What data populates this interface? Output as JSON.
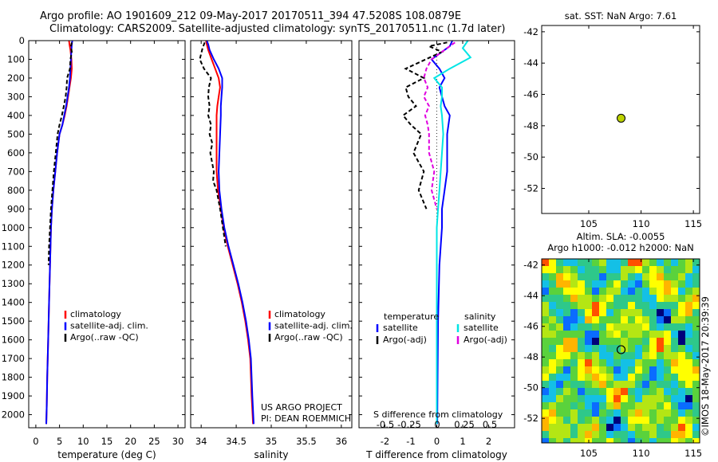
{
  "title_line1": "Argo profile: AO 1901609_212 09-May-2017 20170511_394 47.5208S 108.0879E",
  "title_line2": "Climatology: CARS2009. Satellite-adjusted climatology: synTS_20170511.nc (1.7d later)",
  "side_label": "©IMOS 18-May-2017 20:39:39",
  "colors": {
    "climatology": "#ff0000",
    "satellite": "#0000ff",
    "argo": "#000000",
    "sal_satellite": "#00e5e5",
    "sal_argo": "#e000e0"
  },
  "depth_ticks": [
    "0",
    "100",
    "200",
    "300",
    "400",
    "500",
    "600",
    "700",
    "800",
    "900",
    "1000",
    "1100",
    "1200",
    "1300",
    "1400",
    "1500",
    "1600",
    "1700",
    "1800",
    "1900",
    "2000"
  ],
  "chart_data": [
    {
      "type": "line",
      "xlabel": "temperature (deg C)",
      "ylabel": "",
      "xlim": [
        -1.5,
        31.5
      ],
      "ylim": [
        2070,
        0
      ],
      "xticks": [
        "0",
        "5",
        "10",
        "15",
        "20",
        "25",
        "30"
      ],
      "legend": [
        "climatology",
        "satellite-adj. clim.",
        "Argo(..raw -QC)"
      ],
      "series": [
        {
          "name": "climatology",
          "color": "climatology",
          "dash": "",
          "x": [
            7.0,
            7.1,
            7.3,
            7.5,
            7.6,
            7.4,
            7.1,
            6.8,
            6.5,
            6.1,
            5.6,
            5.0,
            4.5,
            4.1,
            3.7,
            3.4,
            3.2,
            3.0,
            2.8,
            2.6,
            2.4,
            2.3,
            2.2
          ],
          "y": [
            0,
            20,
            50,
            100,
            150,
            200,
            250,
            300,
            350,
            400,
            450,
            500,
            600,
            700,
            800,
            900,
            1000,
            1200,
            1400,
            1600,
            1800,
            1950,
            2050
          ]
        },
        {
          "name": "satellite-adj. clim.",
          "color": "satellite",
          "dash": "",
          "x": [
            7.7,
            7.6,
            7.5,
            7.4,
            7.3,
            7.2,
            7.0,
            6.7,
            6.4,
            6.0,
            5.6,
            5.0,
            4.5,
            4.1,
            3.7,
            3.4,
            3.2,
            3.0,
            2.8,
            2.6,
            2.4,
            2.3,
            2.2
          ],
          "y": [
            0,
            20,
            50,
            100,
            150,
            200,
            250,
            300,
            350,
            400,
            450,
            500,
            600,
            700,
            800,
            900,
            1000,
            1200,
            1400,
            1600,
            1800,
            1950,
            2050
          ]
        },
        {
          "name": "Argo(..raw -QC)",
          "color": "argo",
          "dash": "5,3",
          "x": [
            7.6,
            7.4,
            7.6,
            7.3,
            7.2,
            6.6,
            6.5,
            6.3,
            5.9,
            5.5,
            5.0,
            4.6,
            4.2,
            3.8,
            3.5,
            3.2,
            3.0,
            2.8,
            2.7
          ],
          "y": [
            10,
            30,
            60,
            100,
            150,
            200,
            250,
            300,
            350,
            400,
            450,
            500,
            600,
            700,
            800,
            900,
            1000,
            1100,
            1200
          ]
        }
      ]
    },
    {
      "type": "line",
      "xlabel": "salinity",
      "ylabel": "",
      "xlim": [
        33.85,
        36.15
      ],
      "ylim": [
        2070,
        0
      ],
      "xticks": [
        "34",
        "34.5",
        "35",
        "35.5",
        "36"
      ],
      "legend": [
        "climatology",
        "satellite-adj. clim.",
        "Argo(..raw -QC)"
      ],
      "annotation": [
        "US ARGO PROJECT",
        "PI: DEAN ROEMMICH"
      ],
      "series": [
        {
          "name": "climatology",
          "color": "climatology",
          "dash": "",
          "x": [
            34.07,
            34.08,
            34.1,
            34.15,
            34.2,
            34.25,
            34.27,
            34.25,
            34.23,
            34.22,
            34.22,
            34.22,
            34.22,
            34.24,
            34.28,
            34.32,
            34.38,
            34.45,
            34.52,
            34.58,
            34.63,
            34.67,
            34.7,
            34.72,
            34.74
          ],
          "y": [
            0,
            20,
            50,
            100,
            150,
            200,
            250,
            300,
            350,
            400,
            500,
            600,
            700,
            800,
            900,
            1000,
            1100,
            1200,
            1300,
            1400,
            1500,
            1600,
            1700,
            1900,
            2050
          ]
        },
        {
          "name": "satellite-adj. clim.",
          "color": "satellite",
          "dash": "",
          "x": [
            34.08,
            34.1,
            34.12,
            34.18,
            34.25,
            34.3,
            34.3,
            34.29,
            34.28,
            34.28,
            34.27,
            34.26,
            34.25,
            34.26,
            34.29,
            34.33,
            34.39,
            34.46,
            34.53,
            34.59,
            34.64,
            34.68,
            34.71,
            34.73,
            34.75
          ],
          "y": [
            0,
            20,
            50,
            100,
            150,
            200,
            250,
            300,
            350,
            400,
            500,
            600,
            700,
            800,
            900,
            1000,
            1100,
            1200,
            1300,
            1400,
            1500,
            1600,
            1700,
            1900,
            2050
          ]
        },
        {
          "name": "Argo(..raw -QC)",
          "color": "argo",
          "dash": "5,3",
          "x": [
            34.05,
            34.02,
            33.98,
            34.04,
            34.14,
            34.11,
            34.1,
            34.12,
            34.1,
            34.14,
            34.12,
            34.16,
            34.13,
            34.18,
            34.17,
            34.22,
            34.27,
            34.31,
            34.35
          ],
          "y": [
            10,
            40,
            100,
            150,
            200,
            250,
            300,
            350,
            400,
            450,
            500,
            550,
            600,
            700,
            750,
            800,
            900,
            1000,
            1100
          ]
        }
      ]
    },
    {
      "type": "line",
      "xlabel": "T difference from climatology",
      "ylabel": "",
      "xlim": [
        -3.0,
        3.0
      ],
      "ylim": [
        2070,
        0
      ],
      "xticks": [
        "-2",
        "-1",
        "0",
        "1",
        "2"
      ],
      "top_axis_label": "S difference from climatology",
      "top_xticks": [
        "-0.5",
        "-0.25",
        "0",
        "0.25",
        "0.5"
      ],
      "legend_headers": [
        "temperature",
        "salinity"
      ],
      "legend": [
        "satellite",
        "Argo(-adj)",
        "satellite",
        "Argo(-adj)"
      ],
      "series": [
        {
          "name": "satellite",
          "color": "satellite",
          "dash": "",
          "x": [
            0.6,
            0.5,
            0.2,
            -0.2,
            0.1,
            0.3,
            0.1,
            0.2,
            0.3,
            0.5,
            0.4,
            0.4,
            0.4,
            0.3,
            0.2,
            0.2,
            0.1,
            0.05,
            0.03,
            0.02
          ],
          "y": [
            0,
            30,
            60,
            100,
            150,
            200,
            250,
            300,
            350,
            400,
            500,
            600,
            700,
            800,
            900,
            1000,
            1200,
            1500,
            1800,
            2050
          ]
        },
        {
          "name": "Argo(-adj)",
          "color": "argo",
          "dash": "5,3",
          "x": [
            0.4,
            -0.3,
            0.2,
            -1.2,
            -0.5,
            -1.2,
            -1.1,
            -0.8,
            -1.3,
            -1.0,
            -0.6,
            -0.9,
            -0.5,
            -0.7,
            -0.4
          ],
          "y": [
            10,
            30,
            60,
            150,
            200,
            250,
            300,
            350,
            400,
            450,
            500,
            600,
            700,
            800,
            900
          ]
        },
        {
          "name": "satellite",
          "color": "sal_satellite",
          "dash": "",
          "x": [
            1.2,
            1.0,
            1.3,
            0.5,
            -0.1,
            0.2,
            0.2,
            0.15,
            0.2,
            0.25,
            0.2,
            0.15,
            0.1,
            0.05,
            0.0,
            0.0,
            0.0,
            0.0
          ],
          "y": [
            0,
            40,
            90,
            150,
            200,
            250,
            300,
            350,
            400,
            500,
            600,
            700,
            800,
            900,
            1000,
            1300,
            1700,
            2050
          ]
        },
        {
          "name": "Argo(-adj)",
          "color": "sal_argo",
          "dash": "5,3",
          "x": [
            0.7,
            0.3,
            -0.2,
            -0.4,
            -0.5,
            -0.35,
            -0.5,
            -0.3,
            -0.45,
            -0.35,
            -0.3,
            -0.3,
            -0.1,
            -0.2,
            0.0
          ],
          "y": [
            10,
            50,
            100,
            150,
            200,
            250,
            300,
            350,
            400,
            450,
            500,
            600,
            700,
            800,
            900
          ]
        }
      ]
    },
    {
      "type": "scatter",
      "title": "sat. SST: NaN Argo: 7.61",
      "xlim": [
        100.5,
        115.6
      ],
      "ylim": [
        -53.6,
        -41.6
      ],
      "xticks": [
        "105",
        "110",
        "115"
      ],
      "yticks": [
        "-42",
        "-44",
        "-46",
        "-48",
        "-50",
        "-52"
      ],
      "points": [
        {
          "x": 108.09,
          "y": -47.52,
          "color": "#bcd200"
        }
      ]
    },
    {
      "type": "heatmap",
      "title": "Altim. SLA: -0.0055",
      "subtitle": "Argo h1000: -0.012 h2000: NaN",
      "xlim": [
        100.5,
        115.6
      ],
      "ylim": [
        -53.6,
        -41.6
      ],
      "xticks": [
        "105",
        "110",
        "115"
      ],
      "yticks": [
        "-42",
        "-44",
        "-46",
        "-48",
        "-50",
        "-52"
      ],
      "points": [
        {
          "x": 108.09,
          "y": -47.52
        }
      ],
      "colorscale": [
        "#00007a",
        "#0a6cff",
        "#14c0e6",
        "#2ec88a",
        "#5ad23c",
        "#b4e614",
        "#ffff00",
        "#ffb400",
        "#ff5000"
      ]
    }
  ]
}
